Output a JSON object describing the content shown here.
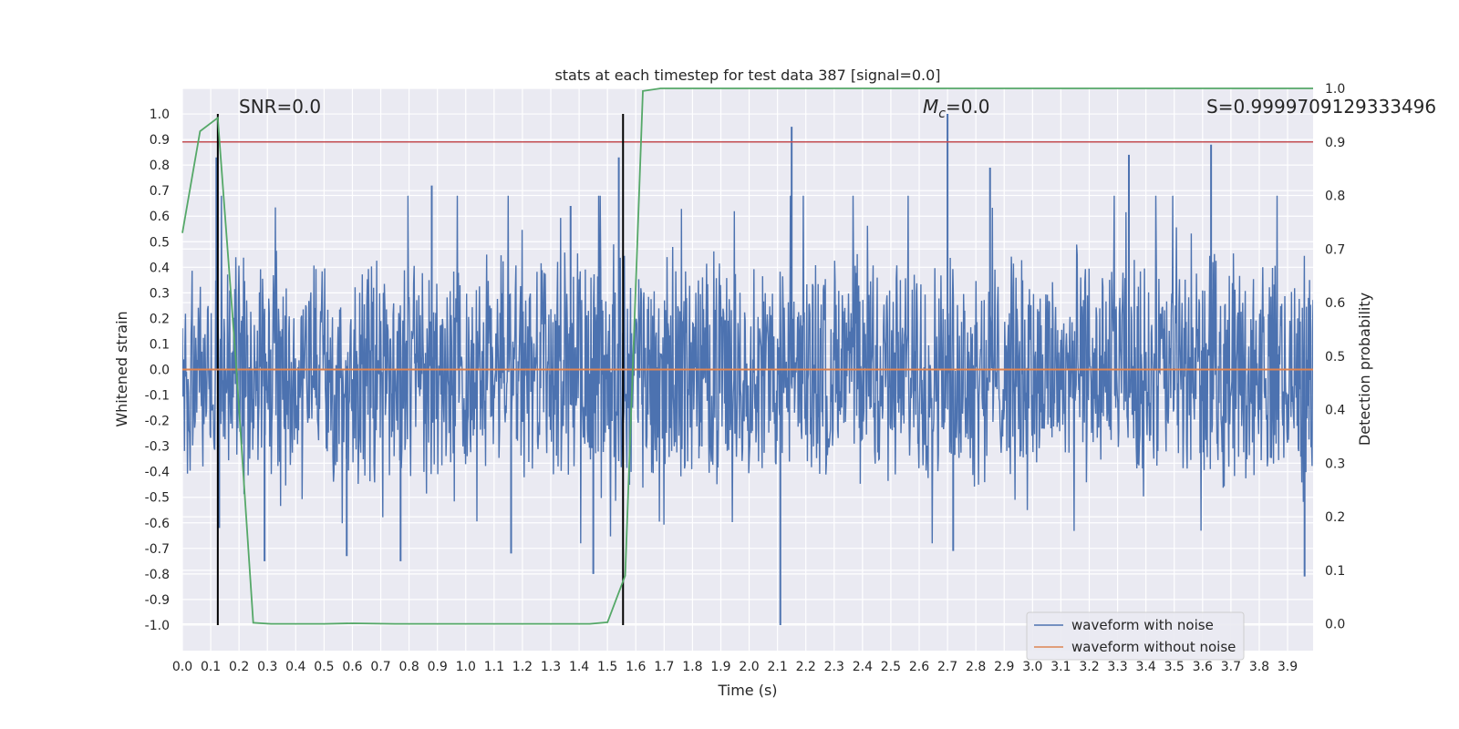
{
  "chart_data": {
    "type": "line",
    "title": "stats at each timestep for test data 387 [signal=0.0]",
    "xlabel": "Time (s)",
    "ylabel": "Whitened strain",
    "y2label": "Detection probability",
    "xlim": [
      0.0,
      3.99
    ],
    "ylim": [
      -1.1,
      1.1
    ],
    "y2lim": [
      -0.05,
      1.0
    ],
    "x_ticks": [
      "0.0",
      "0.1",
      "0.2",
      "0.3",
      "0.4",
      "0.5",
      "0.6",
      "0.7",
      "0.8",
      "0.9",
      "1.0",
      "1.1",
      "1.2",
      "1.3",
      "1.4",
      "1.5",
      "1.6",
      "1.7",
      "1.8",
      "1.9",
      "2.0",
      "2.1",
      "2.2",
      "2.3",
      "2.4",
      "2.5",
      "2.6",
      "2.7",
      "2.8",
      "2.9",
      "3.0",
      "3.1",
      "3.2",
      "3.3",
      "3.4",
      "3.5",
      "3.6",
      "3.7",
      "3.8",
      "3.9"
    ],
    "y_ticks": [
      "1.0",
      "0.9",
      "0.8",
      "0.7",
      "0.6",
      "0.5",
      "0.4",
      "0.3",
      "0.2",
      "0.1",
      "0.0",
      "-0.1",
      "-0.2",
      "-0.3",
      "-0.4",
      "-0.5",
      "-0.6",
      "-0.7",
      "-0.8",
      "-0.9",
      "-1.0"
    ],
    "y2_ticks": [
      "1.0",
      "0.9",
      "0.8",
      "0.7",
      "0.6",
      "0.5",
      "0.4",
      "0.3",
      "0.2",
      "0.1",
      "0.0"
    ],
    "grid": true,
    "legend_position": "lower-right",
    "annotations": {
      "snr": "SNR=0.0",
      "mc": "=0.0",
      "mc_symbol": "M",
      "mc_subscript": "c",
      "s": "S=0.9999709129333496"
    },
    "threshold_line": {
      "axis": "y2",
      "value": 0.9,
      "color": "#c44e52"
    },
    "vertical_markers": [
      0.125,
      1.555
    ],
    "series": [
      {
        "name": "waveform with noise",
        "axis": "y",
        "color": "#4c72b0",
        "amplitude_range": [
          -1.0,
          1.0
        ],
        "spikes": [
          {
            "x": 0.12,
            "y": 0.83
          },
          {
            "x": 0.13,
            "y": -0.62
          },
          {
            "x": 0.29,
            "y": -0.75
          },
          {
            "x": 0.58,
            "y": -0.73
          },
          {
            "x": 0.77,
            "y": -0.75
          },
          {
            "x": 0.88,
            "y": 0.72
          },
          {
            "x": 1.16,
            "y": -0.72
          },
          {
            "x": 1.37,
            "y": 0.64
          },
          {
            "x": 1.45,
            "y": -0.8
          },
          {
            "x": 1.54,
            "y": 0.83
          },
          {
            "x": 2.11,
            "y": -1.0
          },
          {
            "x": 2.15,
            "y": 0.95
          },
          {
            "x": 2.7,
            "y": 1.0
          },
          {
            "x": 2.72,
            "y": -0.71
          },
          {
            "x": 2.85,
            "y": 0.79
          },
          {
            "x": 3.34,
            "y": 0.84
          },
          {
            "x": 3.63,
            "y": 0.88
          },
          {
            "x": 3.96,
            "y": -0.81
          }
        ]
      },
      {
        "name": "waveform without noise",
        "axis": "y",
        "color": "#dd8452",
        "x": [
          0.0,
          3.99
        ],
        "values": [
          0.0,
          0.0
        ]
      },
      {
        "name": "",
        "axis": "y2",
        "color": "#55a868",
        "x": [
          0.0,
          0.0625,
          0.125,
          0.1875,
          0.25,
          0.3125,
          0.375,
          0.5,
          0.6,
          0.75,
          1.0,
          1.25,
          1.4375,
          1.5,
          1.5625,
          1.625,
          1.6875,
          2.0,
          3.0,
          3.99
        ],
        "values": [
          0.73,
          0.92,
          0.945,
          0.5,
          0.002,
          0.0,
          0.0,
          0.0,
          0.001,
          0.0,
          0.0,
          0.0,
          0.0,
          0.003,
          0.09,
          0.995,
          1.0,
          1.0,
          1.0,
          1.0
        ]
      }
    ]
  }
}
